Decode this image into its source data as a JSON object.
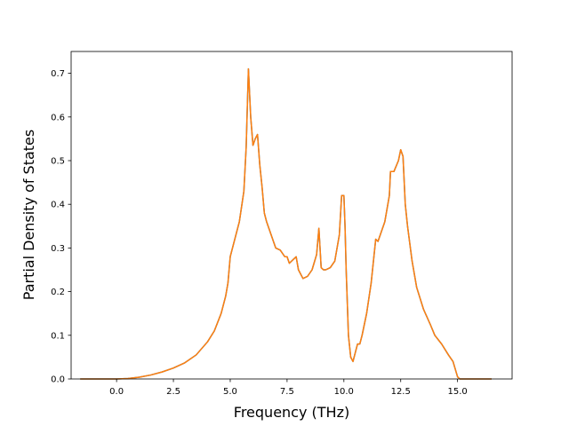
{
  "chart_data": {
    "type": "line",
    "title": "",
    "xlabel": "Frequency (THz)",
    "ylabel": "Partial Density of States",
    "xlim": [
      -2.0,
      17.4
    ],
    "ylim": [
      0.0,
      0.75
    ],
    "xticks": [
      0.0,
      2.5,
      5.0,
      7.5,
      10.0,
      12.5,
      15.0
    ],
    "xtick_labels": [
      "0.0",
      "2.5",
      "5.0",
      "7.5",
      "10.0",
      "12.5",
      "15.0"
    ],
    "yticks": [
      0.0,
      0.1,
      0.2,
      0.3,
      0.4,
      0.5,
      0.6,
      0.7
    ],
    "ytick_labels": [
      "0.0",
      "0.1",
      "0.2",
      "0.3",
      "0.4",
      "0.5",
      "0.6",
      "0.7"
    ],
    "grid": false,
    "legend": "none",
    "series": [
      {
        "color": "#1f77b4",
        "x": [
          -1.6,
          -1.0,
          0.0,
          0.5,
          1.0,
          1.5,
          2.0,
          2.5,
          3.0,
          3.5,
          4.0,
          4.3,
          4.6,
          4.8,
          4.9,
          5.0,
          5.2,
          5.4,
          5.6,
          5.7,
          5.75,
          5.8,
          5.9,
          6.0,
          6.1,
          6.2,
          6.3,
          6.4,
          6.5,
          6.6,
          6.8,
          7.0,
          7.2,
          7.4,
          7.5,
          7.6,
          7.8,
          7.9,
          8.0,
          8.2,
          8.4,
          8.6,
          8.8,
          8.9,
          9.0,
          9.1,
          9.2,
          9.4,
          9.6,
          9.8,
          9.9,
          10.0,
          10.05,
          10.1,
          10.2,
          10.3,
          10.4,
          10.5,
          10.6,
          10.7,
          10.8,
          11.0,
          11.2,
          11.4,
          11.5,
          11.6,
          11.8,
          12.0,
          12.05,
          12.2,
          12.4,
          12.5,
          12.6,
          12.7,
          12.8,
          13.0,
          13.2,
          13.5,
          13.8,
          14.0,
          14.3,
          14.6,
          14.8,
          15.0,
          15.1,
          15.5,
          16.0,
          16.5
        ],
        "y": [
          0.0,
          0.0,
          0.0,
          0.001,
          0.004,
          0.009,
          0.016,
          0.025,
          0.037,
          0.055,
          0.085,
          0.11,
          0.15,
          0.19,
          0.22,
          0.28,
          0.32,
          0.36,
          0.43,
          0.53,
          0.62,
          0.71,
          0.6,
          0.535,
          0.55,
          0.56,
          0.49,
          0.44,
          0.38,
          0.36,
          0.33,
          0.3,
          0.295,
          0.28,
          0.28,
          0.265,
          0.275,
          0.28,
          0.25,
          0.23,
          0.235,
          0.25,
          0.285,
          0.345,
          0.255,
          0.25,
          0.25,
          0.255,
          0.27,
          0.33,
          0.42,
          0.42,
          0.35,
          0.25,
          0.1,
          0.05,
          0.04,
          0.06,
          0.08,
          0.08,
          0.1,
          0.15,
          0.22,
          0.32,
          0.315,
          0.33,
          0.36,
          0.42,
          0.475,
          0.475,
          0.5,
          0.525,
          0.51,
          0.4,
          0.35,
          0.27,
          0.21,
          0.16,
          0.125,
          0.1,
          0.08,
          0.055,
          0.04,
          0.005,
          0.0,
          0.0,
          0.0,
          0.0
        ]
      },
      {
        "color": "#ff7f0e",
        "x": [
          -1.6,
          -1.0,
          0.0,
          0.5,
          1.0,
          1.5,
          2.0,
          2.5,
          3.0,
          3.5,
          4.0,
          4.3,
          4.6,
          4.8,
          4.9,
          5.0,
          5.2,
          5.4,
          5.6,
          5.7,
          5.75,
          5.8,
          5.9,
          6.0,
          6.1,
          6.2,
          6.3,
          6.4,
          6.5,
          6.6,
          6.8,
          7.0,
          7.2,
          7.4,
          7.5,
          7.6,
          7.8,
          7.9,
          8.0,
          8.2,
          8.4,
          8.6,
          8.8,
          8.9,
          9.0,
          9.1,
          9.2,
          9.4,
          9.6,
          9.8,
          9.9,
          10.0,
          10.05,
          10.1,
          10.2,
          10.3,
          10.4,
          10.5,
          10.6,
          10.7,
          10.8,
          11.0,
          11.2,
          11.4,
          11.5,
          11.6,
          11.8,
          12.0,
          12.05,
          12.2,
          12.4,
          12.5,
          12.6,
          12.7,
          12.8,
          13.0,
          13.2,
          13.5,
          13.8,
          14.0,
          14.3,
          14.6,
          14.8,
          15.0,
          15.1,
          15.5,
          16.0,
          16.5
        ],
        "y": [
          0.0,
          0.0,
          0.0,
          0.001,
          0.004,
          0.009,
          0.016,
          0.025,
          0.037,
          0.055,
          0.085,
          0.11,
          0.15,
          0.19,
          0.22,
          0.28,
          0.32,
          0.36,
          0.43,
          0.53,
          0.62,
          0.71,
          0.6,
          0.535,
          0.55,
          0.56,
          0.49,
          0.44,
          0.38,
          0.36,
          0.33,
          0.3,
          0.295,
          0.28,
          0.28,
          0.265,
          0.275,
          0.28,
          0.25,
          0.23,
          0.235,
          0.25,
          0.285,
          0.345,
          0.255,
          0.25,
          0.25,
          0.255,
          0.27,
          0.33,
          0.42,
          0.42,
          0.35,
          0.25,
          0.1,
          0.05,
          0.04,
          0.06,
          0.08,
          0.08,
          0.1,
          0.15,
          0.22,
          0.32,
          0.315,
          0.33,
          0.36,
          0.42,
          0.475,
          0.475,
          0.5,
          0.525,
          0.51,
          0.4,
          0.35,
          0.27,
          0.21,
          0.16,
          0.125,
          0.1,
          0.08,
          0.055,
          0.04,
          0.005,
          0.0,
          0.0,
          0.0,
          0.0
        ]
      }
    ]
  }
}
